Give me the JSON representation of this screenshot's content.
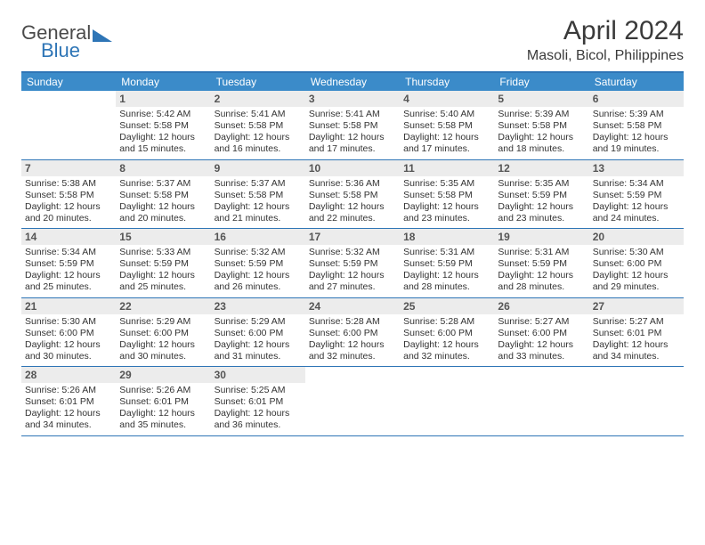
{
  "brand": {
    "general": "General",
    "blue": "Blue"
  },
  "header": {
    "title": "April 2024",
    "location": "Masoli, Bicol, Philippines"
  },
  "colors": {
    "accent": "#2e75b6",
    "header_bg": "#3b8bc9",
    "daynum_bg": "#ececec",
    "text": "#333333"
  },
  "day_headers": [
    "Sunday",
    "Monday",
    "Tuesday",
    "Wednesday",
    "Thursday",
    "Friday",
    "Saturday"
  ],
  "weeks": [
    [
      {
        "day": "",
        "sunrise": "",
        "sunset": "",
        "daylight": ""
      },
      {
        "day": "1",
        "sunrise": "Sunrise: 5:42 AM",
        "sunset": "Sunset: 5:58 PM",
        "daylight": "Daylight: 12 hours and 15 minutes."
      },
      {
        "day": "2",
        "sunrise": "Sunrise: 5:41 AM",
        "sunset": "Sunset: 5:58 PM",
        "daylight": "Daylight: 12 hours and 16 minutes."
      },
      {
        "day": "3",
        "sunrise": "Sunrise: 5:41 AM",
        "sunset": "Sunset: 5:58 PM",
        "daylight": "Daylight: 12 hours and 17 minutes."
      },
      {
        "day": "4",
        "sunrise": "Sunrise: 5:40 AM",
        "sunset": "Sunset: 5:58 PM",
        "daylight": "Daylight: 12 hours and 17 minutes."
      },
      {
        "day": "5",
        "sunrise": "Sunrise: 5:39 AM",
        "sunset": "Sunset: 5:58 PM",
        "daylight": "Daylight: 12 hours and 18 minutes."
      },
      {
        "day": "6",
        "sunrise": "Sunrise: 5:39 AM",
        "sunset": "Sunset: 5:58 PM",
        "daylight": "Daylight: 12 hours and 19 minutes."
      }
    ],
    [
      {
        "day": "7",
        "sunrise": "Sunrise: 5:38 AM",
        "sunset": "Sunset: 5:58 PM",
        "daylight": "Daylight: 12 hours and 20 minutes."
      },
      {
        "day": "8",
        "sunrise": "Sunrise: 5:37 AM",
        "sunset": "Sunset: 5:58 PM",
        "daylight": "Daylight: 12 hours and 20 minutes."
      },
      {
        "day": "9",
        "sunrise": "Sunrise: 5:37 AM",
        "sunset": "Sunset: 5:58 PM",
        "daylight": "Daylight: 12 hours and 21 minutes."
      },
      {
        "day": "10",
        "sunrise": "Sunrise: 5:36 AM",
        "sunset": "Sunset: 5:58 PM",
        "daylight": "Daylight: 12 hours and 22 minutes."
      },
      {
        "day": "11",
        "sunrise": "Sunrise: 5:35 AM",
        "sunset": "Sunset: 5:58 PM",
        "daylight": "Daylight: 12 hours and 23 minutes."
      },
      {
        "day": "12",
        "sunrise": "Sunrise: 5:35 AM",
        "sunset": "Sunset: 5:59 PM",
        "daylight": "Daylight: 12 hours and 23 minutes."
      },
      {
        "day": "13",
        "sunrise": "Sunrise: 5:34 AM",
        "sunset": "Sunset: 5:59 PM",
        "daylight": "Daylight: 12 hours and 24 minutes."
      }
    ],
    [
      {
        "day": "14",
        "sunrise": "Sunrise: 5:34 AM",
        "sunset": "Sunset: 5:59 PM",
        "daylight": "Daylight: 12 hours and 25 minutes."
      },
      {
        "day": "15",
        "sunrise": "Sunrise: 5:33 AM",
        "sunset": "Sunset: 5:59 PM",
        "daylight": "Daylight: 12 hours and 25 minutes."
      },
      {
        "day": "16",
        "sunrise": "Sunrise: 5:32 AM",
        "sunset": "Sunset: 5:59 PM",
        "daylight": "Daylight: 12 hours and 26 minutes."
      },
      {
        "day": "17",
        "sunrise": "Sunrise: 5:32 AM",
        "sunset": "Sunset: 5:59 PM",
        "daylight": "Daylight: 12 hours and 27 minutes."
      },
      {
        "day": "18",
        "sunrise": "Sunrise: 5:31 AM",
        "sunset": "Sunset: 5:59 PM",
        "daylight": "Daylight: 12 hours and 28 minutes."
      },
      {
        "day": "19",
        "sunrise": "Sunrise: 5:31 AM",
        "sunset": "Sunset: 5:59 PM",
        "daylight": "Daylight: 12 hours and 28 minutes."
      },
      {
        "day": "20",
        "sunrise": "Sunrise: 5:30 AM",
        "sunset": "Sunset: 6:00 PM",
        "daylight": "Daylight: 12 hours and 29 minutes."
      }
    ],
    [
      {
        "day": "21",
        "sunrise": "Sunrise: 5:30 AM",
        "sunset": "Sunset: 6:00 PM",
        "daylight": "Daylight: 12 hours and 30 minutes."
      },
      {
        "day": "22",
        "sunrise": "Sunrise: 5:29 AM",
        "sunset": "Sunset: 6:00 PM",
        "daylight": "Daylight: 12 hours and 30 minutes."
      },
      {
        "day": "23",
        "sunrise": "Sunrise: 5:29 AM",
        "sunset": "Sunset: 6:00 PM",
        "daylight": "Daylight: 12 hours and 31 minutes."
      },
      {
        "day": "24",
        "sunrise": "Sunrise: 5:28 AM",
        "sunset": "Sunset: 6:00 PM",
        "daylight": "Daylight: 12 hours and 32 minutes."
      },
      {
        "day": "25",
        "sunrise": "Sunrise: 5:28 AM",
        "sunset": "Sunset: 6:00 PM",
        "daylight": "Daylight: 12 hours and 32 minutes."
      },
      {
        "day": "26",
        "sunrise": "Sunrise: 5:27 AM",
        "sunset": "Sunset: 6:00 PM",
        "daylight": "Daylight: 12 hours and 33 minutes."
      },
      {
        "day": "27",
        "sunrise": "Sunrise: 5:27 AM",
        "sunset": "Sunset: 6:01 PM",
        "daylight": "Daylight: 12 hours and 34 minutes."
      }
    ],
    [
      {
        "day": "28",
        "sunrise": "Sunrise: 5:26 AM",
        "sunset": "Sunset: 6:01 PM",
        "daylight": "Daylight: 12 hours and 34 minutes."
      },
      {
        "day": "29",
        "sunrise": "Sunrise: 5:26 AM",
        "sunset": "Sunset: 6:01 PM",
        "daylight": "Daylight: 12 hours and 35 minutes."
      },
      {
        "day": "30",
        "sunrise": "Sunrise: 5:25 AM",
        "sunset": "Sunset: 6:01 PM",
        "daylight": "Daylight: 12 hours and 36 minutes."
      },
      {
        "day": "",
        "sunrise": "",
        "sunset": "",
        "daylight": ""
      },
      {
        "day": "",
        "sunrise": "",
        "sunset": "",
        "daylight": ""
      },
      {
        "day": "",
        "sunrise": "",
        "sunset": "",
        "daylight": ""
      },
      {
        "day": "",
        "sunrise": "",
        "sunset": "",
        "daylight": ""
      }
    ]
  ]
}
